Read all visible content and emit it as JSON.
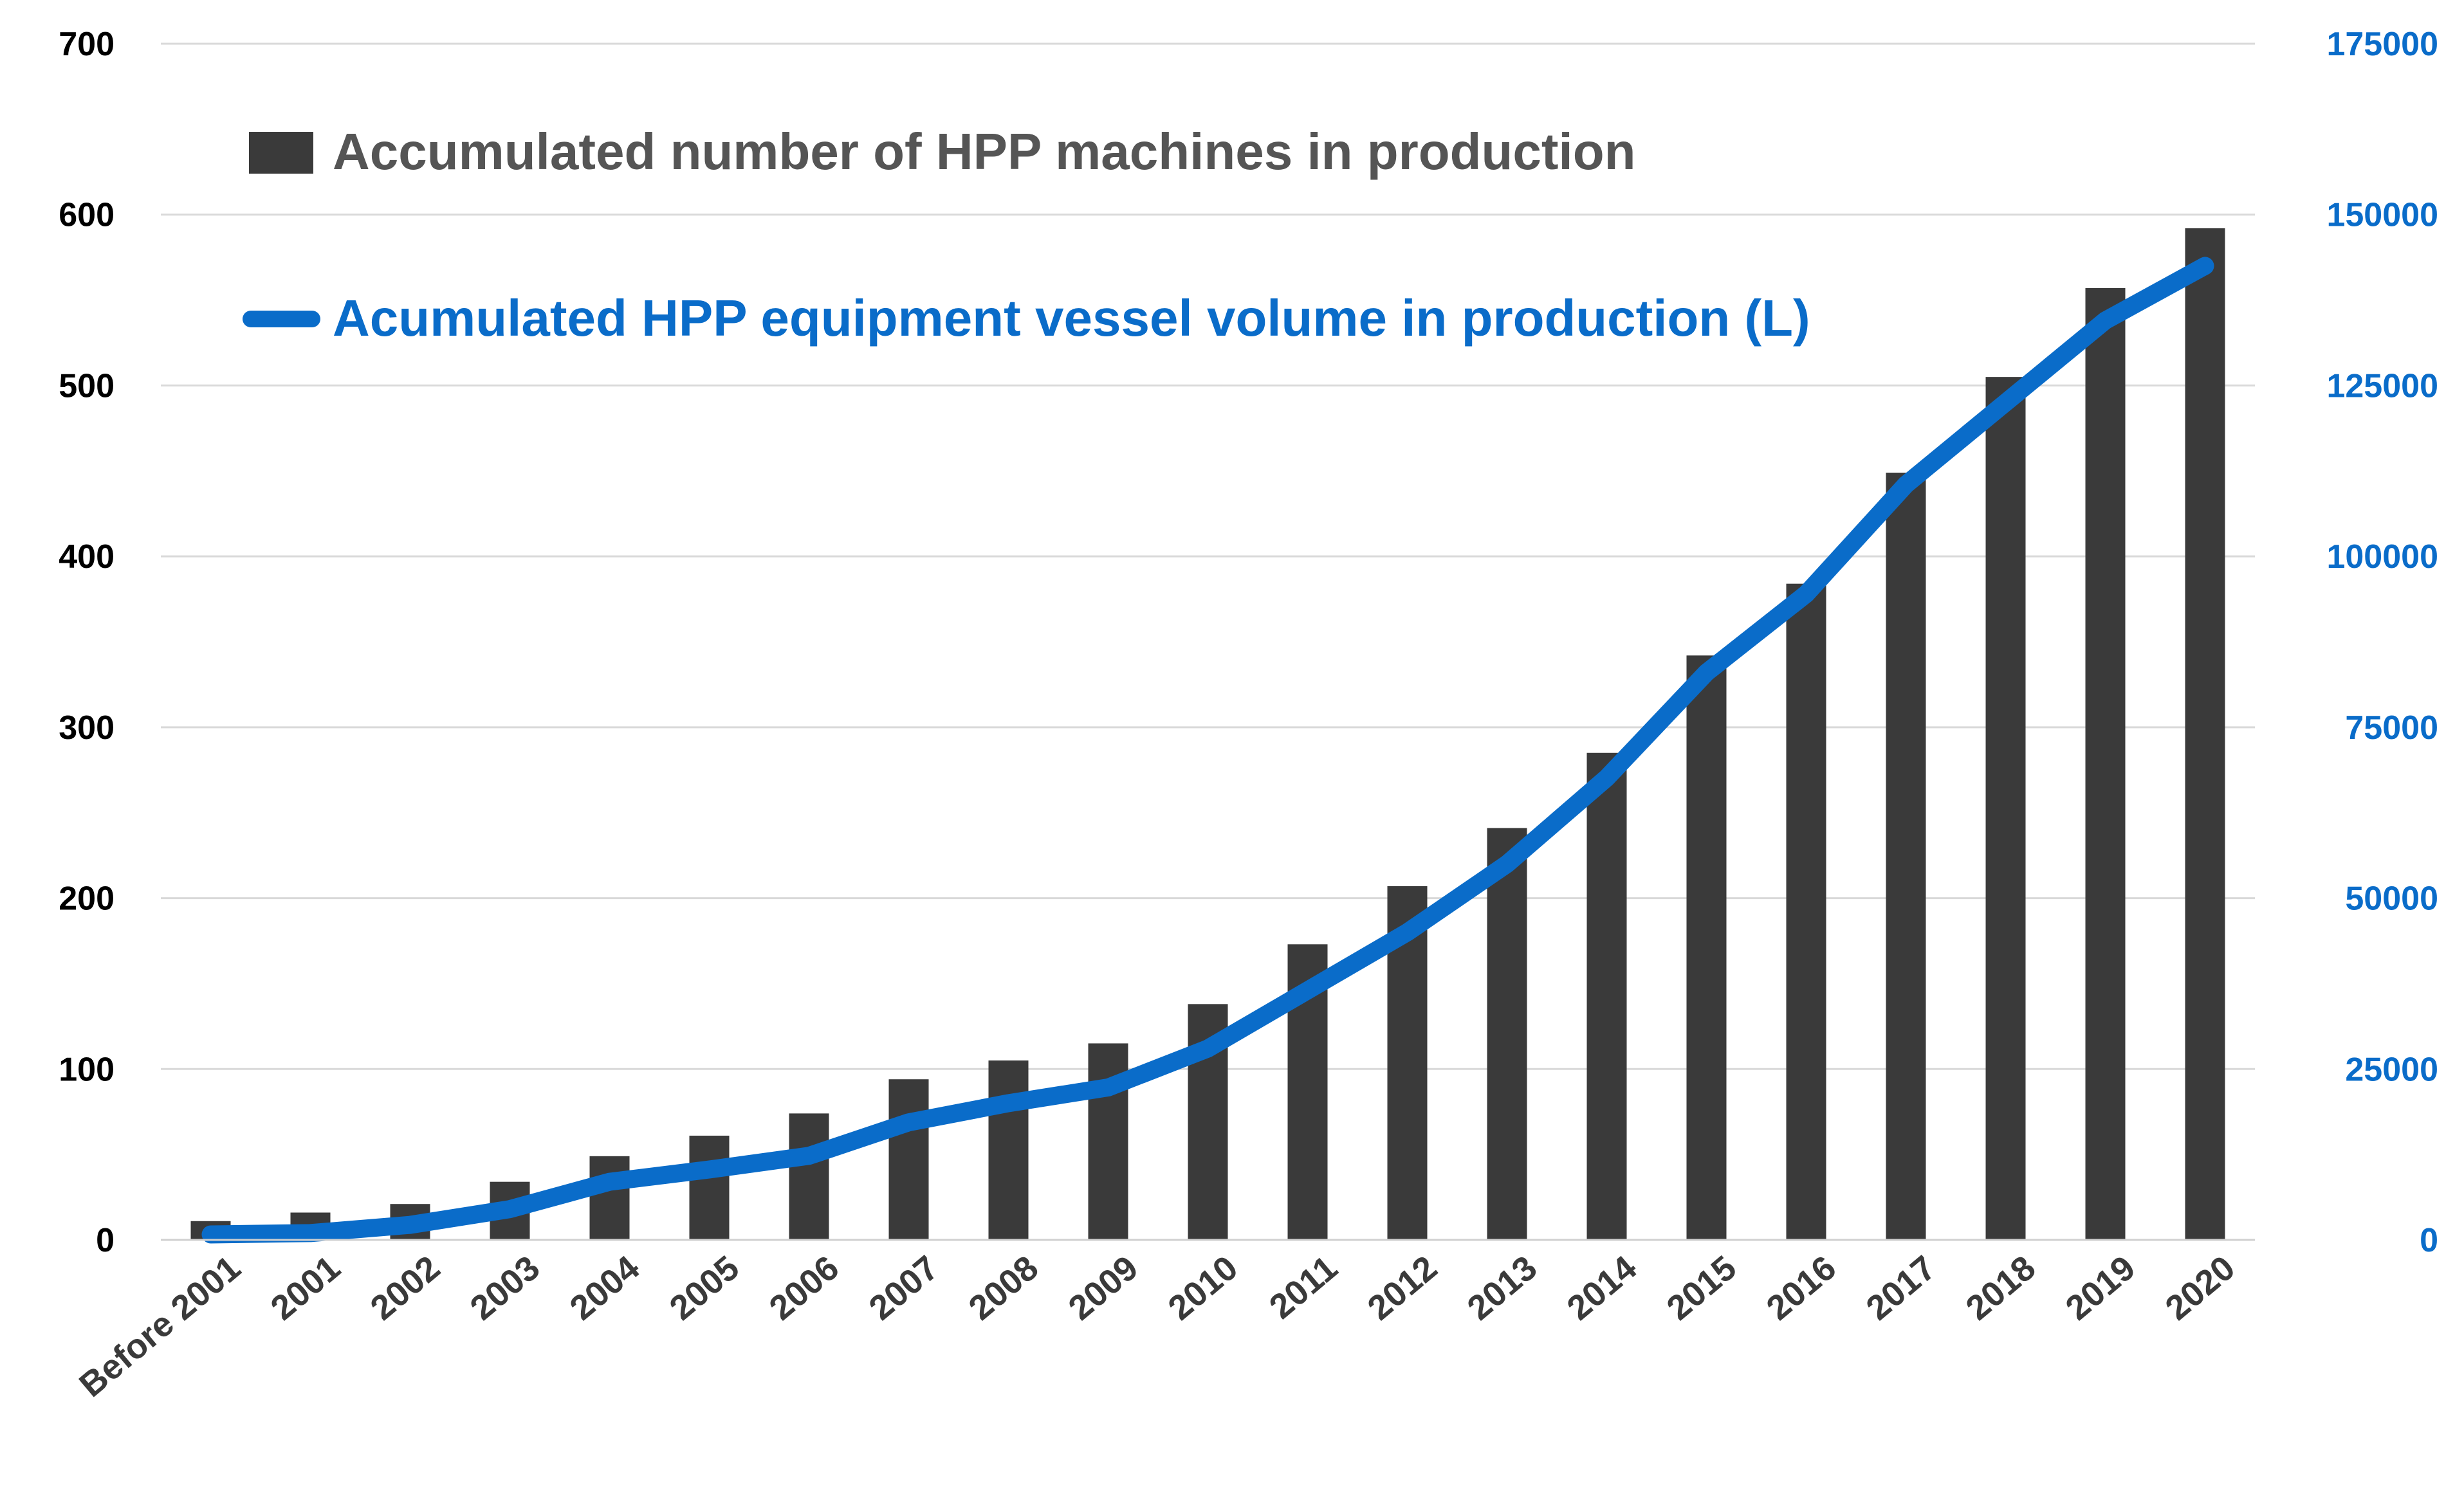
{
  "chart_data": {
    "type": "bar",
    "title": "",
    "xlabel": "",
    "categories": [
      "Before 2001",
      "2001",
      "2002",
      "2003",
      "2004",
      "2005",
      "2006",
      "2007",
      "2008",
      "2009",
      "2010",
      "2011",
      "2012",
      "2013",
      "2014",
      "2015",
      "2016",
      "2017",
      "2018",
      "2019",
      "2020"
    ],
    "series": [
      {
        "name": "Accumulated number of HPP machines in production",
        "type": "bar",
        "axis": "left",
        "color": "#3a3a3a",
        "values": [
          11,
          16,
          21,
          34,
          49,
          61,
          74,
          94,
          105,
          115,
          138,
          173,
          207,
          241,
          285,
          342,
          384,
          449,
          505,
          557,
          592
        ]
      },
      {
        "name": "Acumulated HPP equipment vessel volume in production (L)",
        "type": "line",
        "axis": "right",
        "color": "#0a6cc9",
        "values": [
          800,
          1000,
          2200,
          4500,
          8500,
          10300,
          12300,
          17200,
          20000,
          22300,
          28000,
          36500,
          45000,
          55000,
          67600,
          83000,
          94500,
          110500,
          122500,
          134500,
          142500
        ]
      }
    ],
    "y_left": {
      "range": [
        0,
        700
      ],
      "ticks": [
        "0",
        "100",
        "200",
        "300",
        "400",
        "500",
        "600",
        "700"
      ]
    },
    "y_right": {
      "range": [
        0,
        175000
      ],
      "ticks": [
        "0",
        "25000",
        "50000",
        "75000",
        "100000",
        "125000",
        "150000",
        "175000"
      ],
      "color": "#0a6cc9"
    },
    "grid": true,
    "legend_position": "top-left"
  }
}
